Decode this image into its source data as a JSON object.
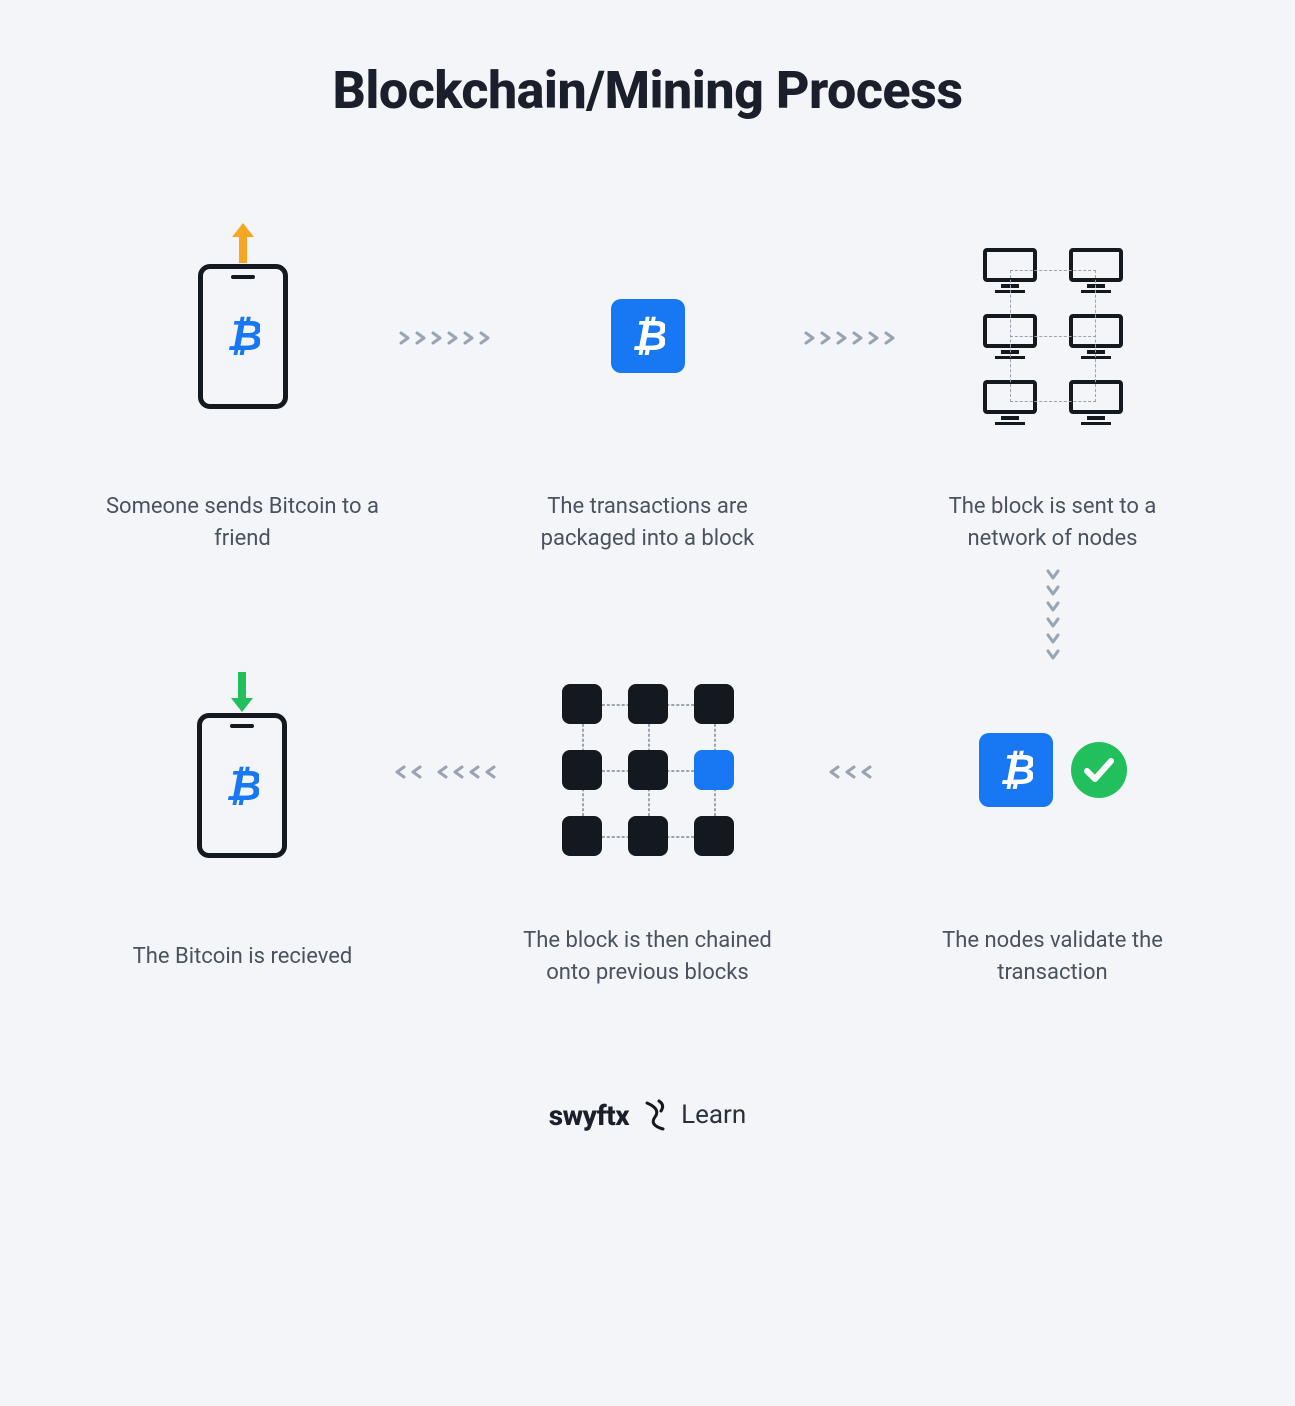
{
  "type": "infographic-flow",
  "background_color": "#f3f5f8",
  "title": {
    "text": "Blockchain/Mining Process",
    "fontsize": 52,
    "weight": 800,
    "color": "#1a1f2b"
  },
  "colors": {
    "ink": "#14181f",
    "caption": "#4a5260",
    "chevron": "#9aa3b2",
    "dashed": "#9aa3b2",
    "bitcoin_blue": "#1877f2",
    "block_bg": "#1877f2",
    "arrow_send": "#f5a623",
    "arrow_recv": "#21c05c",
    "check_bg": "#21c05c",
    "check_fg": "#ffffff"
  },
  "steps": [
    {
      "key": "send",
      "caption": "Someone sends Bitcoin to a friend"
    },
    {
      "key": "package",
      "caption": "The transactions are packaged into a block"
    },
    {
      "key": "broadcast",
      "caption": "The block is sent to a network of nodes"
    },
    {
      "key": "validate",
      "caption": "The nodes validate the transaction"
    },
    {
      "key": "chain",
      "caption": "The block is then chained onto previous blocks"
    },
    {
      "key": "receive",
      "caption": "The Bitcoin is recieved"
    }
  ],
  "arrows": {
    "horiz_chev_count": 6,
    "vert_chev_count": 6,
    "back_chev_count_1": 3,
    "back_chev_count_2": 6
  },
  "footer": {
    "brand": "swyftx",
    "sub": "Learn"
  }
}
